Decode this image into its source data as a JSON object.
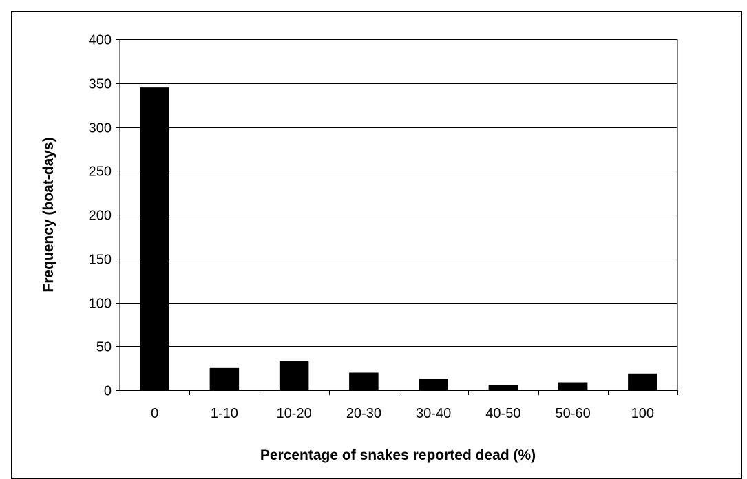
{
  "chart_data": {
    "type": "bar",
    "title": "",
    "xlabel": "Percentage of snakes reported dead (%)",
    "ylabel": "Frequency (boat-days)",
    "categories": [
      "0",
      "1-10",
      "10-20",
      "20-30",
      "30-40",
      "40-50",
      "50-60",
      "100"
    ],
    "values": [
      345,
      26,
      33,
      20,
      13,
      6,
      9,
      19
    ],
    "ylim": [
      0,
      400
    ],
    "yticks": [
      0,
      50,
      100,
      150,
      200,
      250,
      300,
      350,
      400
    ],
    "grid": true,
    "legend": "none",
    "bar_color": "#000000"
  }
}
